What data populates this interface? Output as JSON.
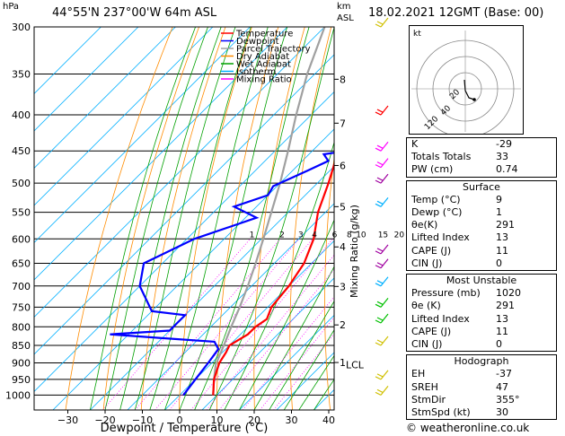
{
  "header": {
    "hpa": "hPa",
    "location": "44°55'N 237°00'W 64m ASL",
    "km": "km",
    "asl": "ASL",
    "datetime": "18.02.2021 12GMT (Base: 00)"
  },
  "chart_data": {
    "type": "skew-t",
    "xlabel": "Dewpoint / Temperature (°C)",
    "ylabel_right": "Mixing Ratio (g/kg)",
    "pressure_ticks": [
      300,
      350,
      400,
      450,
      500,
      550,
      600,
      650,
      700,
      750,
      800,
      850,
      900,
      950,
      1000
    ],
    "pressure_labels": [
      "300",
      "350",
      "400",
      "450",
      "500",
      "550",
      "600",
      "650",
      "700",
      "750",
      "800",
      "850",
      "900",
      "950",
      "1000"
    ],
    "temp_ticks": [
      -30,
      -20,
      -10,
      0,
      10,
      20,
      30,
      40
    ],
    "temp_labels": [
      "−30",
      "−20",
      "−10",
      "0",
      "10",
      "20",
      "30",
      "40"
    ],
    "xlim": [
      -40,
      40
    ],
    "ylim": [
      1050,
      300
    ],
    "km_ticks": [
      {
        "label": "8",
        "p": 356
      },
      {
        "label": "7",
        "p": 411
      },
      {
        "label": "6",
        "p": 472
      },
      {
        "label": "5",
        "p": 540
      },
      {
        "label": "4",
        "p": 616
      },
      {
        "label": "3",
        "p": 701
      },
      {
        "label": "2",
        "p": 795
      },
      {
        "label": "1",
        "p": 899
      }
    ],
    "lcl": {
      "label": "LCL",
      "p": 905
    },
    "mixing_ratio_labels": [
      "1",
      "2",
      "3",
      "4",
      "6",
      "8",
      "10",
      "15",
      "20",
      "25"
    ],
    "mixing_ratio_values": [
      1,
      2,
      3,
      4,
      6,
      8,
      10,
      15,
      20,
      25
    ],
    "legend": [
      {
        "name": "Temperature",
        "color": "#ff0000"
      },
      {
        "name": "Dewpoint",
        "color": "#0000ff"
      },
      {
        "name": "Parcel Trajectory",
        "color": "#a0a0a0"
      },
      {
        "name": "Dry Adiabat",
        "color": "#ff8c00"
      },
      {
        "name": "Wet Adiabat",
        "color": "#00a000"
      },
      {
        "name": "Isotherm",
        "color": "#00b0ff"
      },
      {
        "name": "Mixing Ratio",
        "color": "#ff00ff"
      }
    ],
    "temperature": {
      "p": [
        1000,
        950,
        900,
        870,
        850,
        820,
        800,
        780,
        750,
        700,
        650,
        600,
        550,
        500,
        450,
        400,
        350,
        300
      ],
      "t": [
        9,
        5,
        2,
        1,
        0,
        2,
        2,
        3,
        1,
        0,
        -2,
        -6,
        -12,
        -17,
        -23,
        -31,
        -38,
        -46
      ]
    },
    "dewpoint": {
      "p": [
        1000,
        950,
        900,
        860,
        840,
        830,
        820,
        810,
        790,
        770,
        760,
        700,
        650,
        600,
        560,
        540,
        520,
        505,
        490,
        480,
        465,
        455,
        445,
        400,
        350,
        300
      ],
      "t": [
        1,
        0,
        -1,
        -2,
        -5,
        -20,
        -35,
        -20,
        -20,
        -20,
        -30,
        -40,
        -45,
        -38,
        -27,
        -36,
        -30,
        -31,
        -28,
        -26,
        -23,
        -26,
        -16,
        -20,
        -26,
        -32
      ]
    },
    "parcel": {
      "p": [
        1000,
        950,
        905,
        850,
        800,
        750,
        700,
        650,
        600,
        550,
        500,
        450,
        400,
        350,
        300
      ],
      "t": [
        9,
        5,
        1.5,
        -1.5,
        -4.5,
        -7.5,
        -11,
        -15,
        -19.5,
        -24.5,
        -30,
        -36.5,
        -44,
        -52,
        -60
      ]
    },
    "wind_barbs": [
      {
        "p": 300,
        "color": "#d0c000"
      },
      {
        "p": 400,
        "color": "#ff0000"
      },
      {
        "p": 450,
        "color": "#ff00ff"
      },
      {
        "p": 475,
        "color": "#ff00ff"
      },
      {
        "p": 500,
        "color": "#a000a0"
      },
      {
        "p": 540,
        "color": "#00b0ff"
      },
      {
        "p": 630,
        "color": "#a000a0"
      },
      {
        "p": 660,
        "color": "#a000a0"
      },
      {
        "p": 700,
        "color": "#00b0ff"
      },
      {
        "p": 750,
        "color": "#00c000"
      },
      {
        "p": 790,
        "color": "#00c000"
      },
      {
        "p": 850,
        "color": "#d0c000"
      },
      {
        "p": 950,
        "color": "#d0c000"
      },
      {
        "p": 1000,
        "color": "#d0c000"
      }
    ]
  },
  "hodograph": {
    "label": "kt",
    "ring_labels": [
      "20",
      "40"
    ],
    "ring_label_extra": "120"
  },
  "indices": {
    "rows": [
      {
        "label": "K",
        "value": "-29"
      },
      {
        "label": "Totals Totals",
        "value": "33"
      },
      {
        "label": "PW (cm)",
        "value": "0.74"
      }
    ]
  },
  "surface": {
    "title": "Surface",
    "rows": [
      {
        "label": "Temp (°C)",
        "value": "9"
      },
      {
        "label": "Dewp (°C)",
        "value": "1"
      },
      {
        "label": "θe(K)",
        "value": "291"
      },
      {
        "label": "Lifted Index",
        "value": "13"
      },
      {
        "label": "CAPE (J)",
        "value": "11"
      },
      {
        "label": "CIN (J)",
        "value": "0"
      }
    ]
  },
  "most_unstable": {
    "title": "Most Unstable",
    "rows": [
      {
        "label": "Pressure (mb)",
        "value": "1020"
      },
      {
        "label": "θe (K)",
        "value": "291"
      },
      {
        "label": "Lifted Index",
        "value": "13"
      },
      {
        "label": "CAPE (J)",
        "value": "11"
      },
      {
        "label": "CIN (J)",
        "value": "0"
      }
    ]
  },
  "hodograph_box": {
    "title": "Hodograph",
    "rows": [
      {
        "label": "EH",
        "value": "-37"
      },
      {
        "label": "SREH",
        "value": "47"
      },
      {
        "label": "StmDir",
        "value": "355°"
      },
      {
        "label": "StmSpd (kt)",
        "value": "30"
      }
    ]
  },
  "credit": "© weatheronline.co.uk"
}
